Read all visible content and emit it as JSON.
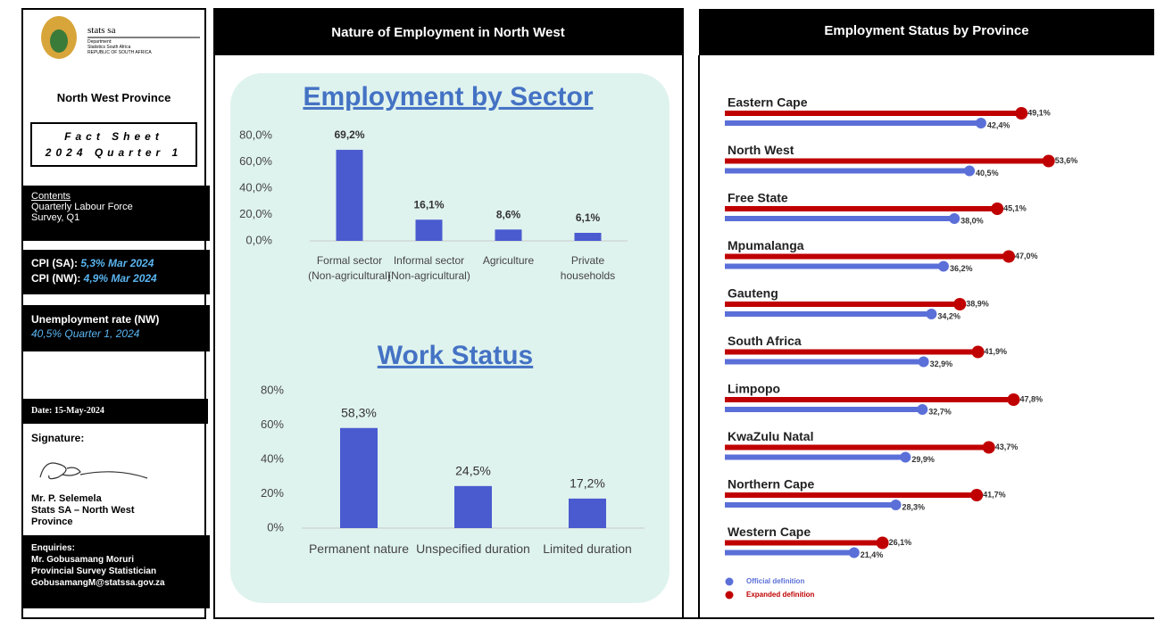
{
  "sidebar": {
    "logo": {
      "name": "stats sa",
      "line1": "Department:",
      "line2": "Statistics South Africa",
      "line3": "REPUBLIC OF SOUTH AFRICA"
    },
    "province": "North West Province",
    "fact_sheet": "Fact Sheet",
    "period": "2024 Quarter 1",
    "contents": {
      "heading": "Contents",
      "text": "Quarterly Labour Force Survey, Q1"
    },
    "cpi": [
      {
        "label": "CPI (SA):",
        "value": "5,3%  Mar 2024"
      },
      {
        "label": "CPI (NW):",
        "value": "4,9%  Mar 2024"
      }
    ],
    "unemployment": {
      "label": "Unemployment rate (NW)",
      "value": "40,5% Quarter  1, 2024"
    },
    "date": "Date: 15-May-2024",
    "signature": "Signature:",
    "signatory": {
      "name": "Mr. P. Selemela",
      "office": "Stats SA – North West Province"
    },
    "enquiries": {
      "heading": "Enquiries:",
      "name": "Mr. Gobusamang Moruri",
      "role": "Provincial Survey Statistician",
      "email": "GobusamangM@statssa.gov.za"
    }
  },
  "panels": {
    "middle": "Nature of Employment in North West",
    "right": "Employment Status by Province"
  },
  "chart_data": [
    {
      "type": "bar",
      "title": "Employment by Sector",
      "categories": [
        "Formal sector (Non-agricultural)",
        "Informal sector (Non-agricultural)",
        "Agriculture",
        "Private households"
      ],
      "values": [
        69.2,
        16.1,
        8.6,
        6.1
      ],
      "value_labels": [
        "69,2%",
        "16,1%",
        "8,6%",
        "6,1%"
      ],
      "color": "#4a5bd0",
      "ylim": [
        0,
        80
      ],
      "yticks": [
        {
          "value": 0,
          "label": "0,0%"
        },
        {
          "value": 20,
          "label": "20,0%"
        },
        {
          "value": 40,
          "label": "40,0%"
        },
        {
          "value": 60,
          "label": "60,0%"
        },
        {
          "value": 80,
          "label": "80,0%"
        }
      ],
      "grid": false
    },
    {
      "type": "bar",
      "title": "Work Status",
      "categories": [
        "Permanent nature",
        "Unspecified duration",
        "Limited duration"
      ],
      "values": [
        58.3,
        24.5,
        17.2
      ],
      "value_labels": [
        "58,3%",
        "24,5%",
        "17,2%"
      ],
      "color": "#4a5bd0",
      "ylim": [
        0,
        80
      ],
      "yticks": [
        {
          "value": 0,
          "label": "0%"
        },
        {
          "value": 20,
          "label": "20%"
        },
        {
          "value": 40,
          "label": "40%"
        },
        {
          "value": 60,
          "label": "60%"
        },
        {
          "value": 80,
          "label": "80%"
        }
      ],
      "grid": false
    },
    {
      "type": "hbar",
      "categories": [
        "Eastern Cape",
        "North West",
        "Free State",
        "Mpumalanga",
        "Gauteng",
        "South Africa",
        "Limpopo",
        "KwaZulu Natal",
        "Northern Cape",
        "Western Cape"
      ],
      "series": [
        {
          "name": "Official definition",
          "color": "#5b6fd8",
          "values": [
            42.4,
            40.5,
            38.0,
            36.2,
            34.2,
            32.9,
            32.7,
            29.9,
            28.3,
            21.4
          ],
          "value_labels": [
            "42,4%",
            "40,5%",
            "38,0%",
            "36,2%",
            "34,2%",
            "32,9%",
            "32,7%",
            "29,9%",
            "28,3%",
            "21,4%"
          ]
        },
        {
          "name": "Expanded definition",
          "color": "#c00000",
          "values": [
            49.1,
            53.6,
            45.1,
            47.0,
            38.9,
            41.9,
            47.8,
            43.7,
            41.7,
            26.1
          ],
          "value_labels": [
            "49,1%",
            "53,6%",
            "45,1%",
            "47,0%",
            "38,9%",
            "41,9%",
            "47,8%",
            "43,7%",
            "41,7%",
            "26,1%"
          ]
        }
      ],
      "xlim": [
        0,
        60
      ],
      "legend": "bottom-left"
    }
  ]
}
